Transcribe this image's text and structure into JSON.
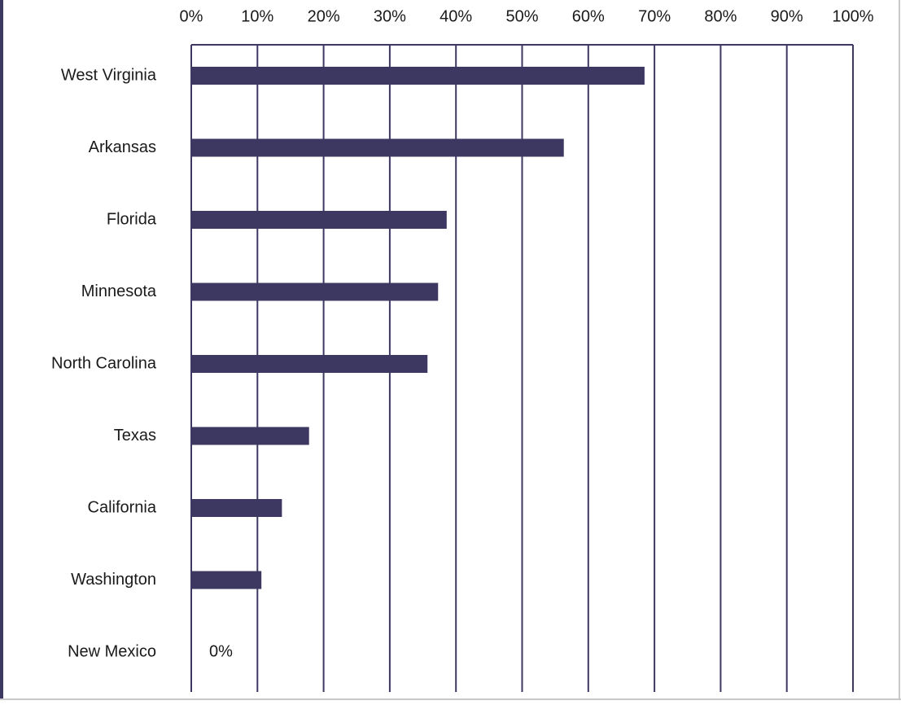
{
  "chart_data": {
    "type": "bar",
    "orientation": "horizontal",
    "categories": [
      "West Virginia",
      "Arkansas",
      "Florida",
      "Minnesota",
      "North Carolina",
      "Texas",
      "California",
      "Washington",
      "New Mexico"
    ],
    "values": [
      68.5,
      56.3,
      38.6,
      37.3,
      35.7,
      17.8,
      13.7,
      10.6,
      0
    ],
    "value_labels": [
      null,
      null,
      null,
      null,
      null,
      null,
      null,
      null,
      "0%"
    ],
    "color": "#3d3862",
    "xlim": [
      0,
      100
    ],
    "xticks": [
      {
        "value": 0,
        "label": "0%"
      },
      {
        "value": 10,
        "label": "10%"
      },
      {
        "value": 20,
        "label": "20%"
      },
      {
        "value": 30,
        "label": "30%"
      },
      {
        "value": 40,
        "label": "40%"
      },
      {
        "value": 50,
        "label": "50%"
      },
      {
        "value": 60,
        "label": "60%"
      },
      {
        "value": 70,
        "label": "70%"
      },
      {
        "value": 80,
        "label": "80%"
      },
      {
        "value": 90,
        "label": "90%"
      },
      {
        "value": 100,
        "label": "100%"
      }
    ],
    "grid": true
  }
}
